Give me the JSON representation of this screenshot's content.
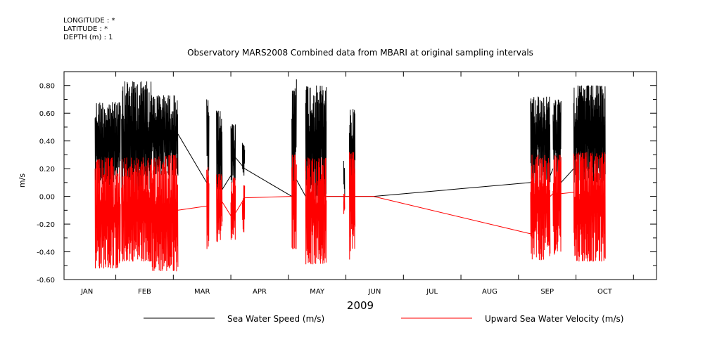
{
  "header": {
    "longitude": "LONGITUDE : *",
    "latitude": "LATITUDE : *",
    "depth": "DEPTH (m) : 1"
  },
  "chart_data": {
    "type": "line",
    "title": "Observatory MARS2008 Combined data from MBARI at original sampling intervals",
    "xlabel": "2009",
    "ylabel": "m/s",
    "x_unit": "month of 2009 (1 = Jan 1)",
    "xlim": [
      0.6,
      10.9
    ],
    "ylim": [
      -0.6,
      0.9
    ],
    "months": [
      "JAN",
      "FEB",
      "MAR",
      "APR",
      "MAY",
      "JUN",
      "JUL",
      "AUG",
      "SEP",
      "OCT"
    ],
    "y_ticks": [
      "-0.60",
      "-0.40",
      "-0.20",
      "0.00",
      "0.20",
      "0.40",
      "0.60",
      "0.80"
    ],
    "y_tick_values": [
      -0.6,
      -0.4,
      -0.2,
      0.0,
      0.2,
      0.4,
      0.6,
      0.8
    ],
    "legend_position": "bottom",
    "series": [
      {
        "name": "Sea Water Speed (m/s)",
        "color": "#000000",
        "segments": [
          {
            "x_start": 1.14,
            "x_end": 1.58,
            "y_low": 0.08,
            "y_high": 0.68
          },
          {
            "x_start": 1.6,
            "x_end": 2.12,
            "y_low": 0.02,
            "y_high": 0.83
          },
          {
            "x_start": 2.12,
            "x_end": 2.58,
            "y_low": 0.15,
            "y_high": 0.73
          },
          {
            "x_start": 3.08,
            "x_end": 3.12,
            "y_low": 0.1,
            "y_high": 0.7
          },
          {
            "x_start": 3.25,
            "x_end": 3.35,
            "y_low": 0.05,
            "y_high": 0.62
          },
          {
            "x_start": 3.5,
            "x_end": 3.58,
            "y_low": 0.1,
            "y_high": 0.52
          },
          {
            "x_start": 3.7,
            "x_end": 3.74,
            "y_low": 0.15,
            "y_high": 0.4
          },
          {
            "x_start": 4.56,
            "x_end": 4.64,
            "y_low": 0.0,
            "y_high": 0.85
          },
          {
            "x_start": 4.8,
            "x_end": 5.16,
            "y_low": 0.0,
            "y_high": 0.8
          },
          {
            "x_start": 5.46,
            "x_end": 5.48,
            "y_low": 0.0,
            "y_high": 0.3
          },
          {
            "x_start": 5.56,
            "x_end": 5.66,
            "y_low": 0.05,
            "y_high": 0.63
          },
          {
            "x_start": 8.71,
            "x_end": 9.05,
            "y_low": 0.1,
            "y_high": 0.72
          },
          {
            "x_start": 9.1,
            "x_end": 9.24,
            "y_low": 0.1,
            "y_high": 0.7
          },
          {
            "x_start": 9.46,
            "x_end": 10.01,
            "y_low": 0.1,
            "y_high": 0.8
          }
        ],
        "gap_lines": [
          [
            [
              2.58,
              0.45
            ],
            [
              3.08,
              0.1
            ]
          ],
          [
            [
              3.35,
              0.05
            ],
            [
              3.5,
              0.15
            ]
          ],
          [
            [
              3.58,
              0.28
            ],
            [
              3.74,
              0.2
            ]
          ],
          [
            [
              3.74,
              0.2
            ],
            [
              4.56,
              0.0
            ]
          ],
          [
            [
              4.64,
              0.12
            ],
            [
              4.8,
              0.0
            ]
          ],
          [
            [
              5.16,
              0.0
            ],
            [
              5.56,
              0.0
            ]
          ],
          [
            [
              5.66,
              0.0
            ],
            [
              5.98,
              0.0
            ]
          ],
          [
            [
              5.98,
              0.0
            ],
            [
              8.71,
              0.1
            ]
          ],
          [
            [
              9.05,
              0.15
            ],
            [
              9.1,
              0.2
            ]
          ],
          [
            [
              9.24,
              0.1
            ],
            [
              9.46,
              0.2
            ]
          ]
        ]
      },
      {
        "name": "Upward Sea Water Velocity (m/s)",
        "color": "#ff0000",
        "segments": [
          {
            "x_start": 1.14,
            "x_end": 1.58,
            "y_low": -0.52,
            "y_high": 0.28
          },
          {
            "x_start": 1.6,
            "x_end": 2.12,
            "y_low": -0.47,
            "y_high": 0.28
          },
          {
            "x_start": 2.12,
            "x_end": 2.58,
            "y_low": -0.54,
            "y_high": 0.3
          },
          {
            "x_start": 3.08,
            "x_end": 3.12,
            "y_low": -0.38,
            "y_high": 0.22
          },
          {
            "x_start": 3.25,
            "x_end": 3.35,
            "y_low": -0.33,
            "y_high": 0.16
          },
          {
            "x_start": 3.5,
            "x_end": 3.58,
            "y_low": -0.32,
            "y_high": 0.14
          },
          {
            "x_start": 3.7,
            "x_end": 3.74,
            "y_low": -0.26,
            "y_high": 0.08
          },
          {
            "x_start": 4.56,
            "x_end": 4.64,
            "y_low": -0.38,
            "y_high": 0.3
          },
          {
            "x_start": 4.8,
            "x_end": 5.16,
            "y_low": -0.49,
            "y_high": 0.28
          },
          {
            "x_start": 5.46,
            "x_end": 5.48,
            "y_low": -0.14,
            "y_high": 0.02
          },
          {
            "x_start": 5.56,
            "x_end": 5.66,
            "y_low": -0.46,
            "y_high": 0.32
          },
          {
            "x_start": 8.71,
            "x_end": 9.05,
            "y_low": -0.46,
            "y_high": 0.3
          },
          {
            "x_start": 9.1,
            "x_end": 9.24,
            "y_low": -0.42,
            "y_high": 0.3
          },
          {
            "x_start": 9.46,
            "x_end": 10.01,
            "y_low": -0.47,
            "y_high": 0.32
          }
        ],
        "gap_lines": [
          [
            [
              2.58,
              -0.1
            ],
            [
              3.08,
              -0.07
            ]
          ],
          [
            [
              3.35,
              -0.04
            ],
            [
              3.5,
              -0.14
            ]
          ],
          [
            [
              3.58,
              -0.12
            ],
            [
              3.74,
              -0.01
            ]
          ],
          [
            [
              3.74,
              -0.01
            ],
            [
              4.56,
              0.0
            ]
          ],
          [
            [
              5.16,
              0.0
            ],
            [
              5.56,
              0.0
            ]
          ],
          [
            [
              5.66,
              0.0
            ],
            [
              5.98,
              0.0
            ]
          ],
          [
            [
              5.98,
              0.0
            ],
            [
              8.71,
              -0.27
            ]
          ],
          [
            [
              9.05,
              0.0
            ],
            [
              9.1,
              0.02
            ]
          ],
          [
            [
              9.24,
              0.02
            ],
            [
              9.46,
              0.03
            ]
          ]
        ]
      }
    ]
  }
}
